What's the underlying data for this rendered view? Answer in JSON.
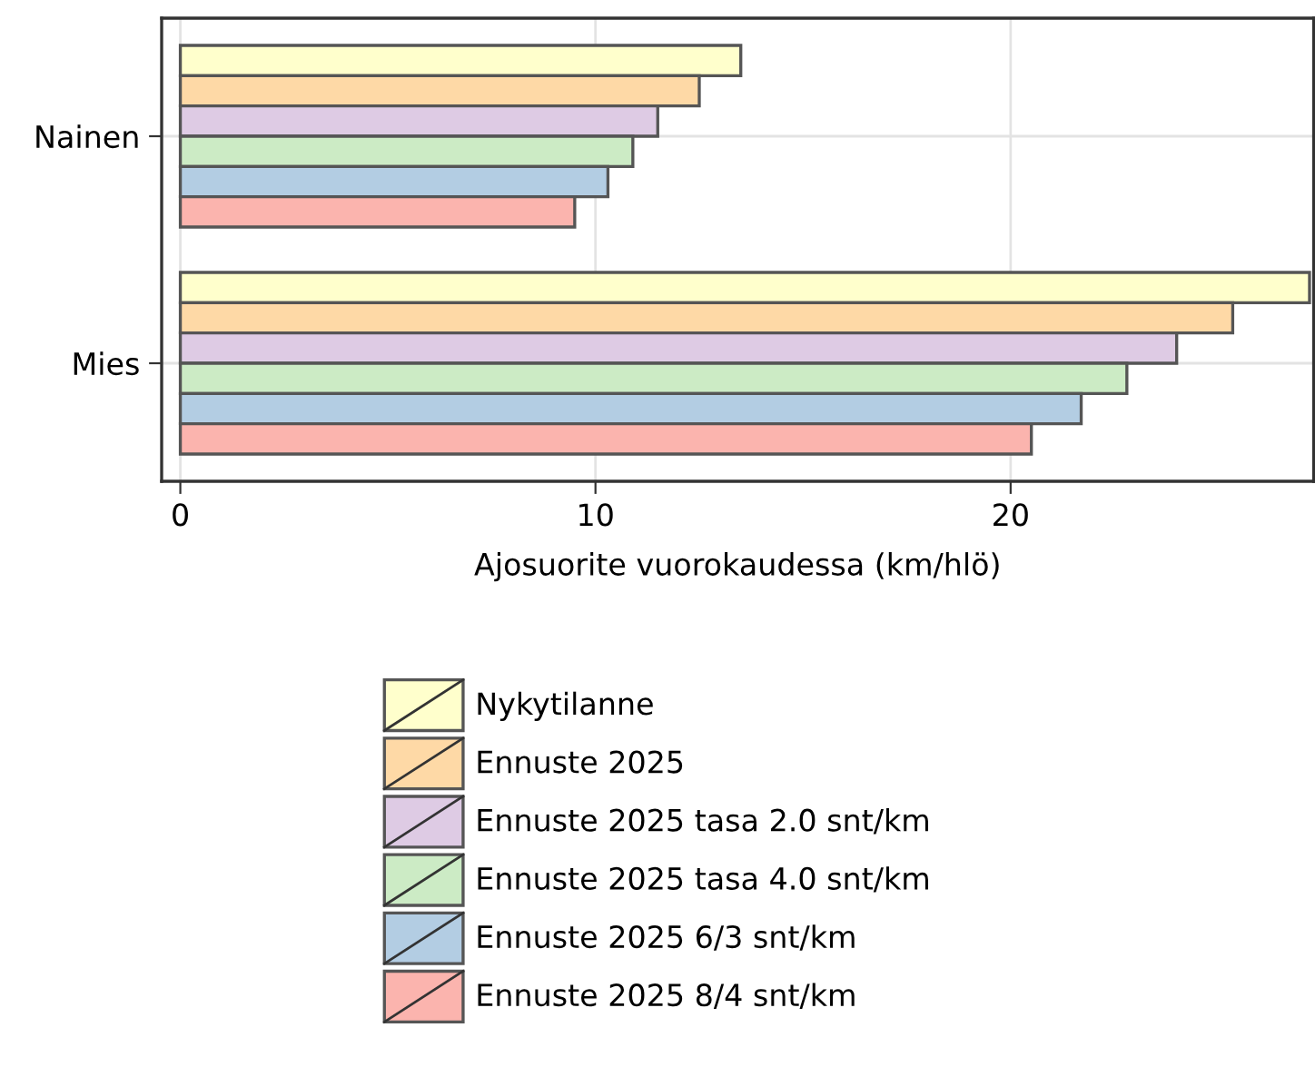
{
  "chart_data": {
    "type": "bar",
    "orientation": "horizontal",
    "xlabel": "Ajosuorite vuorokaudessa (km/hlö)",
    "categories": [
      "Nainen",
      "Mies"
    ],
    "series": [
      {
        "name": "Nykytilanne",
        "color": "#ffffcc",
        "values": [
          13.5,
          27.2
        ]
      },
      {
        "name": "Ennuste 2025",
        "color": "#fed9a6",
        "values": [
          12.5,
          25.35
        ]
      },
      {
        "name": "Ennuste 2025 tasa 2.0 snt/km",
        "color": "#decbe4",
        "values": [
          11.5,
          24.0
        ]
      },
      {
        "name": "Ennuste 2025 tasa 4.0 snt/km",
        "color": "#ccebc5",
        "values": [
          10.9,
          22.8
        ]
      },
      {
        "name": "Ennuste 2025 6/3 snt/km",
        "color": "#b3cde3",
        "values": [
          10.3,
          21.7
        ]
      },
      {
        "name": "Ennuste 2025 8/4 snt/km",
        "color": "#fbb4ae",
        "values": [
          9.5,
          20.5
        ]
      }
    ],
    "xlim": [
      -0.45,
      27.3
    ],
    "xticks": [
      0,
      10,
      20
    ],
    "grid": true,
    "legend": "bottom"
  }
}
